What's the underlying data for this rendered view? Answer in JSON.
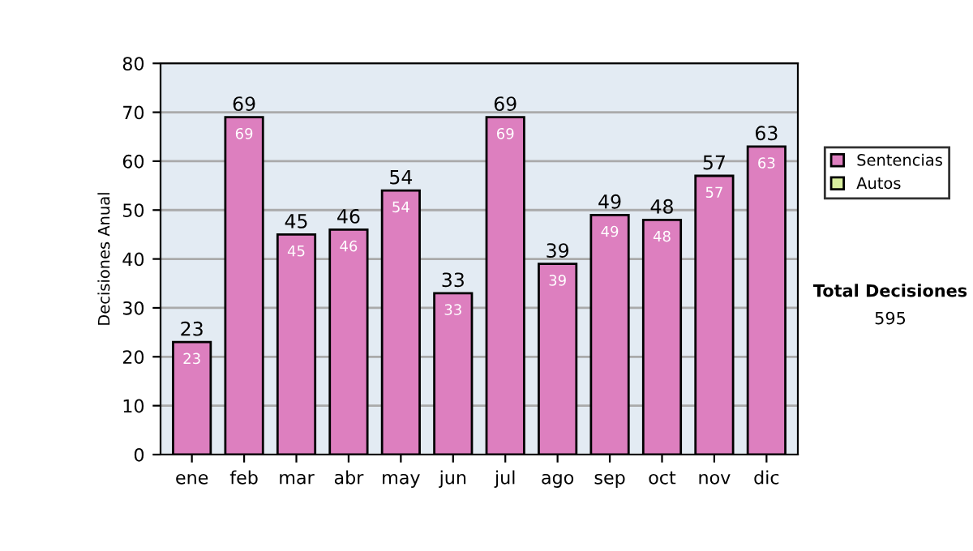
{
  "chart_data": {
    "type": "bar",
    "stacked": true,
    "ylabel": "Decisiones Anual",
    "categories": [
      "ene",
      "feb",
      "mar",
      "abr",
      "may",
      "jun",
      "jul",
      "ago",
      "sep",
      "oct",
      "nov",
      "dic"
    ],
    "series": [
      {
        "name": "Sentencias",
        "color": "#dd7fbf",
        "values": [
          23,
          69,
          45,
          46,
          54,
          33,
          69,
          39,
          49,
          48,
          57,
          63
        ],
        "value_labels": [
          "23",
          "69",
          "45",
          "46",
          "54",
          "33",
          "69",
          "39",
          "49",
          "48",
          "57",
          "63"
        ]
      },
      {
        "name": "Autos",
        "color": "#d9ef9f",
        "values": [
          null,
          null,
          null,
          null,
          null,
          null,
          null,
          null,
          null,
          null,
          null,
          null
        ],
        "value_labels": [
          null,
          null,
          null,
          null,
          null,
          null,
          null,
          null,
          null,
          null,
          null,
          null
        ]
      }
    ],
    "totals": [
      "23",
      "69",
      "45",
      "46",
      "54",
      "33",
      "69",
      "39",
      "49",
      "48",
      "57",
      "63"
    ],
    "ylim": [
      0,
      80
    ],
    "yticks": [
      0,
      10,
      20,
      30,
      40,
      50,
      60,
      70,
      80
    ],
    "grid": "y",
    "legend": "right",
    "annotations": [
      "Total Decisiones",
      "595"
    ]
  }
}
